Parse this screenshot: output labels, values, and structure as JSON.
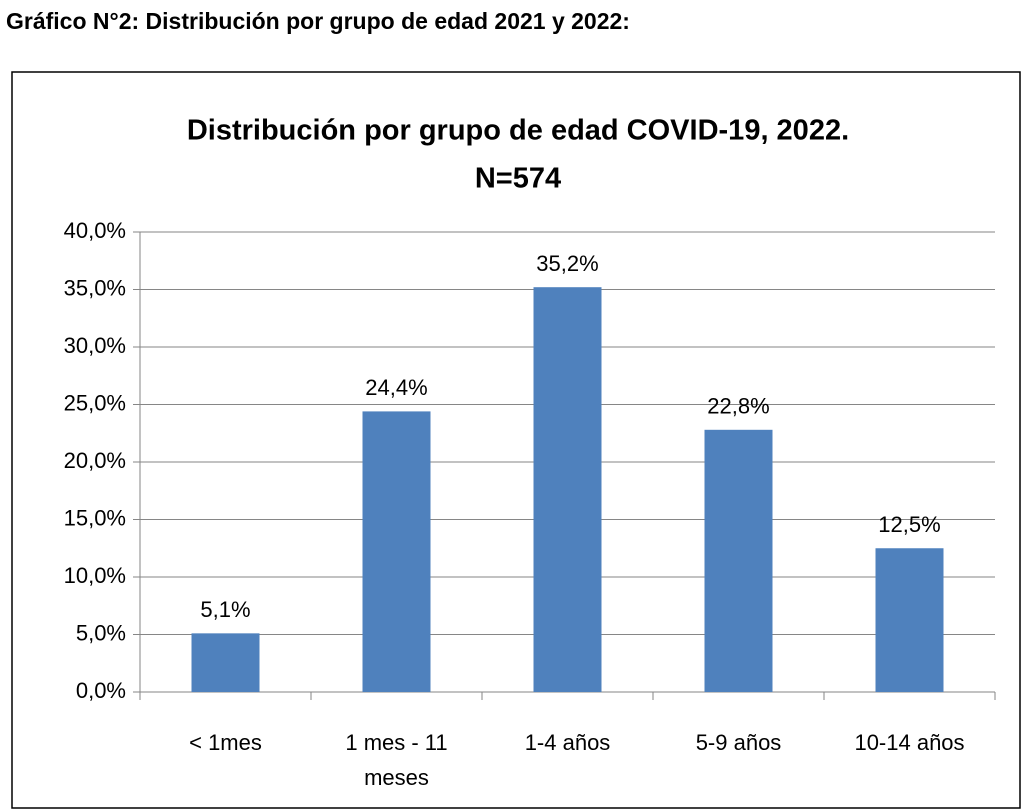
{
  "heading": "Gráfico N°2: Distribución por grupo de edad 2021 y 2022:",
  "chart_data": {
    "type": "bar",
    "title": "Distribución por grupo de edad COVID-19, 2022.",
    "subtitle": "N=574",
    "categories": [
      "< 1mes",
      "1 mes - 11 meses",
      "1-4 años",
      "5-9 años",
      "10-14 años"
    ],
    "values": [
      5.1,
      24.4,
      35.2,
      22.8,
      12.5
    ],
    "value_labels": [
      "5,1%",
      "24,4%",
      "35,2%",
      "22,8%",
      "12,5%"
    ],
    "color": "#4f81bd",
    "ylim": [
      0,
      40
    ],
    "yticks": [
      {
        "value": 0,
        "label": "0,0%"
      },
      {
        "value": 5,
        "label": "5,0%"
      },
      {
        "value": 10,
        "label": "10,0%"
      },
      {
        "value": 15,
        "label": "15,0%"
      },
      {
        "value": 20,
        "label": "20,0%"
      },
      {
        "value": 25,
        "label": "25,0%"
      },
      {
        "value": 30,
        "label": "30,0%"
      },
      {
        "value": 35,
        "label": "35,0%"
      },
      {
        "value": 40,
        "label": "40,0%"
      }
    ],
    "grid": true
  }
}
